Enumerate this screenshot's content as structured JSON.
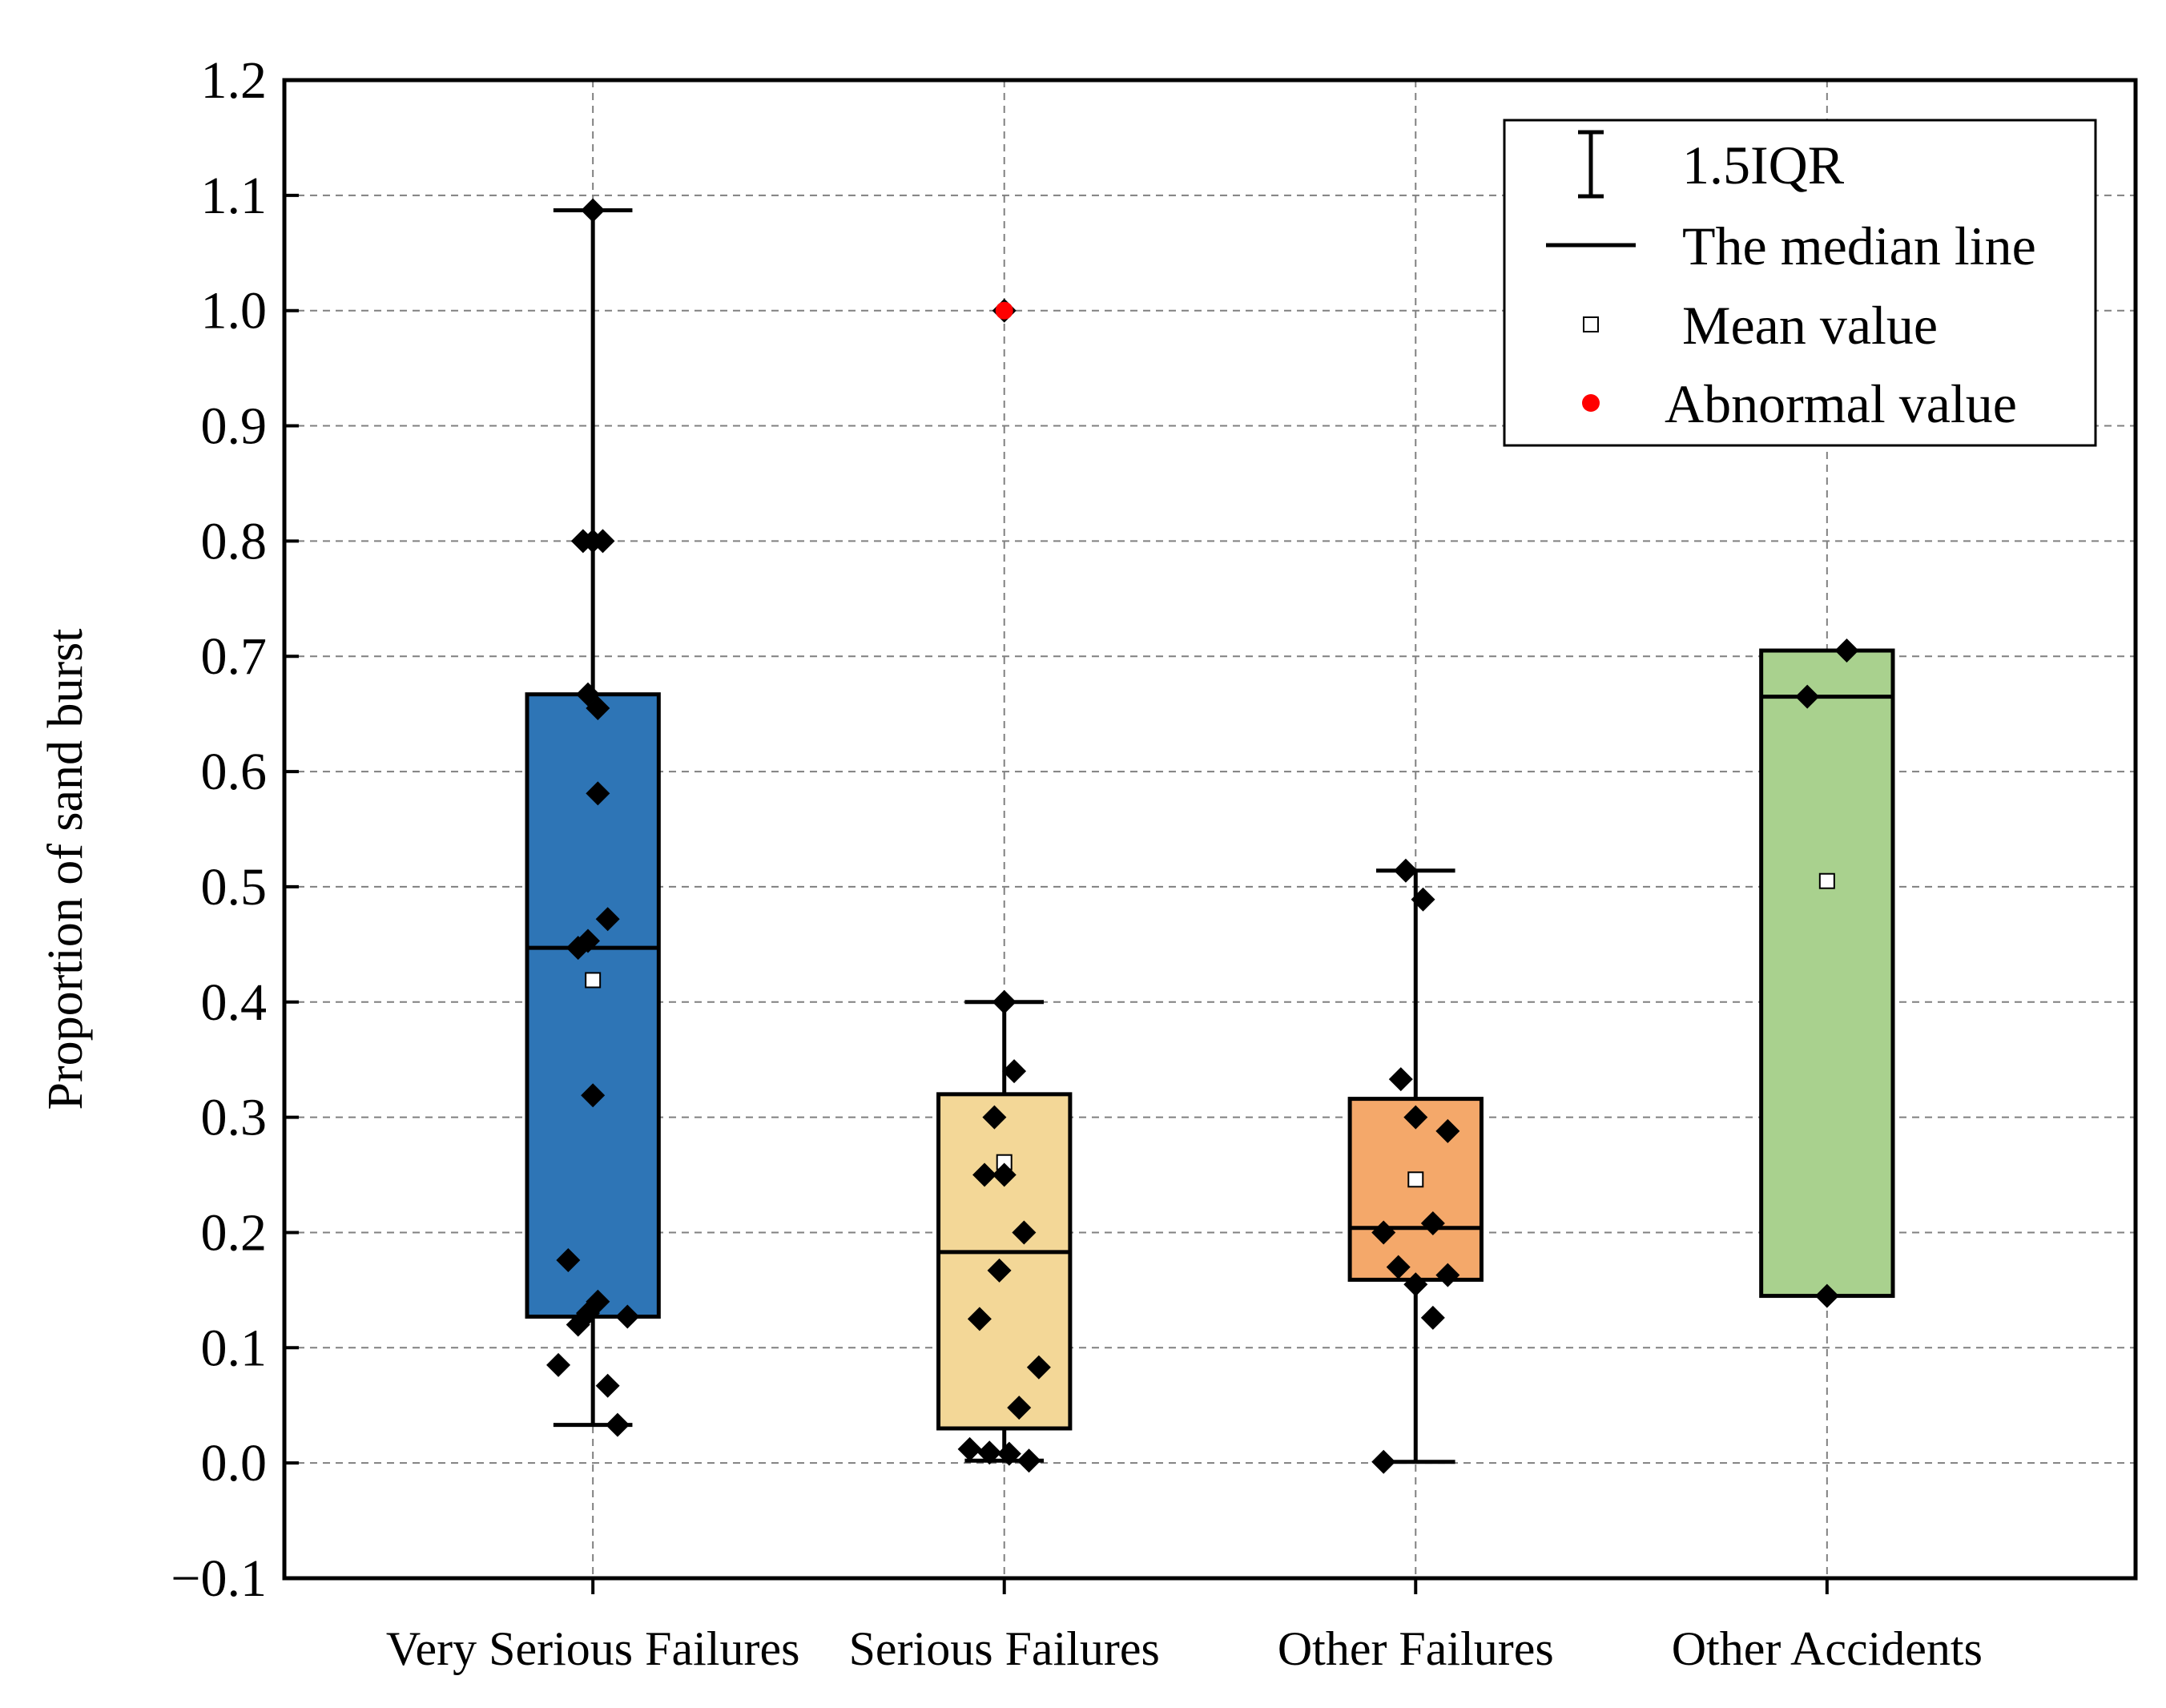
{
  "chart_data": {
    "type": "box",
    "title": "",
    "xlabel": "",
    "ylabel": "Proportion of sand burst",
    "ylim": [
      -0.1,
      1.2
    ],
    "yticks": [
      -0.1,
      0.0,
      0.1,
      0.2,
      0.3,
      0.4,
      0.5,
      0.6,
      0.7,
      0.8,
      0.9,
      1.0,
      1.1,
      1.2
    ],
    "ytick_labels": [
      "−0.1",
      "0.0",
      "0.1",
      "0.2",
      "0.3",
      "0.4",
      "0.5",
      "0.6",
      "0.7",
      "0.8",
      "0.9",
      "1.0",
      "1.1",
      "1.2"
    ],
    "grid": true,
    "legend_position": "top-right",
    "categories": [
      "Very Serious Failures",
      "Serious Failures",
      "Other Failures",
      "Other Accidents"
    ],
    "boxes": [
      {
        "name": "Very Serious Failures",
        "color": "#2e75b6",
        "q1": 0.127,
        "median": 0.447,
        "q3": 0.667,
        "mean": 0.419,
        "whisker_low": 0.033,
        "whisker_high": 1.087,
        "points": [
          [
            0.0,
            1.087
          ],
          [
            -0.04,
            0.8
          ],
          [
            0.0,
            0.8
          ],
          [
            0.04,
            0.8
          ],
          [
            -0.02,
            0.667
          ],
          [
            0.02,
            0.655
          ],
          [
            0.02,
            0.581
          ],
          [
            0.06,
            0.472
          ],
          [
            -0.06,
            0.447
          ],
          [
            -0.02,
            0.453
          ],
          [
            0.0,
            0.319
          ],
          [
            -0.1,
            0.176
          ],
          [
            0.02,
            0.14
          ],
          [
            -0.02,
            0.13
          ],
          [
            -0.06,
            0.12
          ],
          [
            0.14,
            0.127
          ],
          [
            -0.14,
            0.085
          ],
          [
            0.06,
            0.067
          ],
          [
            0.1,
            0.033
          ]
        ],
        "outliers": []
      },
      {
        "name": "Serious Failures",
        "color": "#f3d797",
        "q1": 0.03,
        "median": 0.183,
        "q3": 0.32,
        "mean": 0.261,
        "whisker_low": 0.002,
        "whisker_high": 0.4,
        "points": [
          [
            0.0,
            1.0
          ],
          [
            0.0,
            0.4
          ],
          [
            0.04,
            0.34
          ],
          [
            -0.04,
            0.3
          ],
          [
            -0.08,
            0.25
          ],
          [
            0.0,
            0.25
          ],
          [
            0.08,
            0.2
          ],
          [
            -0.02,
            0.167
          ],
          [
            -0.1,
            0.125
          ],
          [
            0.14,
            0.083
          ],
          [
            0.06,
            0.048
          ],
          [
            -0.14,
            0.012
          ],
          [
            -0.06,
            0.009
          ],
          [
            0.02,
            0.008
          ],
          [
            0.1,
            0.002
          ]
        ],
        "outliers": [
          [
            0.0,
            1.0
          ]
        ]
      },
      {
        "name": "Other Failures",
        "color": "#f4a86a",
        "q1": 0.159,
        "median": 0.204,
        "q3": 0.316,
        "mean": 0.246,
        "whisker_low": 0.001,
        "whisker_high": 0.514,
        "points": [
          [
            -0.04,
            0.514
          ],
          [
            0.03,
            0.489
          ],
          [
            -0.06,
            0.333
          ],
          [
            0.0,
            0.3
          ],
          [
            0.13,
            0.288
          ],
          [
            0.07,
            0.208
          ],
          [
            -0.13,
            0.2
          ],
          [
            -0.07,
            0.17
          ],
          [
            0.0,
            0.155
          ],
          [
            0.13,
            0.163
          ],
          [
            0.07,
            0.126
          ],
          [
            -0.13,
            0.001
          ]
        ],
        "outliers": []
      },
      {
        "name": "Other Accidents",
        "color": "#a9d18e",
        "q1": 0.145,
        "median": 0.665,
        "q3": 0.705,
        "mean": 0.505,
        "whisker_low": 0.145,
        "whisker_high": 0.705,
        "points": [
          [
            0.08,
            0.705
          ],
          [
            -0.08,
            0.665
          ],
          [
            0.0,
            0.145
          ]
        ],
        "outliers": []
      }
    ],
    "legend": [
      {
        "symbol": "whisker",
        "label": "1.5IQR"
      },
      {
        "symbol": "line",
        "label": "The median line"
      },
      {
        "symbol": "square",
        "label": "Mean value"
      },
      {
        "symbol": "dot",
        "label": "Abnormal value"
      }
    ],
    "colors": {
      "point": "#000000",
      "outlier": "#ff0000",
      "grid": "#808080"
    }
  }
}
